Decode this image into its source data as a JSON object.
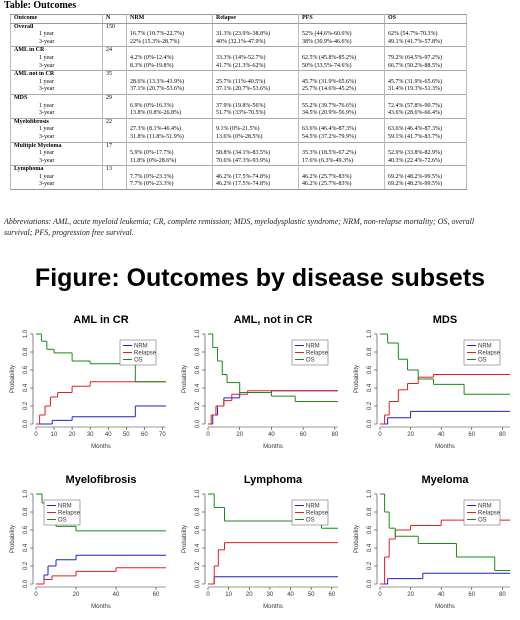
{
  "table": {
    "title": "Table: Outcomes",
    "headers": [
      "Outcome",
      "N",
      "NRM",
      "Relapse",
      "PFS",
      "OS"
    ],
    "groups": [
      {
        "name": "Overall",
        "n": 150,
        "rows": [
          {
            "label": "1 year",
            "cells": [
              "16.7% (10.7%-22.7%)",
              "31.3% (23.9%-38.8%)",
              "52% (44.6%-60.6%)",
              "62% (54.7%-70.3%)"
            ]
          },
          {
            "label": "3-year",
            "cells": [
              "22% (15.3%-28.7%)",
              "40% (32.1%-47.9%)",
              "38% (30.9%-46.6%)",
              "49.1% (41.7%-57.8%)"
            ]
          }
        ]
      },
      {
        "name": "AML in CR",
        "n": 24,
        "rows": [
          {
            "label": "1 year",
            "cells": [
              "4.2% (0%-12.4%)",
              "33.3% (14%-52.7%)",
              "62.5% (45.8%-85.2%)",
              "79.2% (64.5%-97.2%)"
            ]
          },
          {
            "label": "3-year",
            "cells": [
              "8.3% (0%-19.8%)",
              "41.7% (21.3%-62%)",
              "50% (33.5%-74.6%)",
              "66.7% (50.2%-88.5%)"
            ]
          }
        ]
      },
      {
        "name": "AML not in CR",
        "n": 35,
        "rows": [
          {
            "label": "1 year",
            "cells": [
              "28.6% (13.3%-43.9%)",
              "25.7% (11%-40.5%)",
              "45.7% (31.9%-65.6%)",
              "45.7% (31.9%-65.6%)"
            ]
          },
          {
            "label": "3-year",
            "cells": [
              "37.1% (20.7%-53.6%)",
              "37.1% (20.7%-53.6%)",
              "25.7% (14.6%-45.2%)",
              "31.4% (19.3%-51.3%)"
            ]
          }
        ]
      },
      {
        "name": "MDS",
        "n": 29,
        "rows": [
          {
            "label": "1 year",
            "cells": [
              "6.9% (0%-16.3%)",
              "37.9% (19.8%-56%)",
              "55.2% (39.7%-76.6%)",
              "72.4% (57.8%-90.7%)"
            ]
          },
          {
            "label": "3-year",
            "cells": [
              "13.8% (0.8%-26.8%)",
              "51.7% (33%-70.5%)",
              "34.5% (20.9%-56.9%)",
              "43.6% (28.6%-66.4%)"
            ]
          }
        ]
      },
      {
        "name": "Myelofibrosis",
        "n": 22,
        "rows": [
          {
            "label": "1 year",
            "cells": [
              "27.3% (8.1%-46.4%)",
              "9.1% (0%-21.5%)",
              "63.6% (46.4%-87.3%)",
              "63.6% (46.4%-87.3%)"
            ]
          },
          {
            "label": "3-year",
            "cells": [
              "31.8% (11.8%-51.9%)",
              "13.6% (0%-28.5%)",
              "54.5% (37.2%-79.9%)",
              "59.1% (41.7%-83.7%)"
            ]
          }
        ]
      },
      {
        "name": "Multiple Myeloma",
        "n": 17,
        "rows": [
          {
            "label": "1 year",
            "cells": [
              "5.9% (0%-17.7%)",
              "58.8% (34.1%-83.5%)",
              "35.3% (18.5%-67.2%)",
              "52.9% (33.8%-82.9%)"
            ]
          },
          {
            "label": "3-year",
            "cells": [
              "11.8% (0%-28.6%)",
              "70.6% (47.3%-93.9%)",
              "17.6% (6.3%-49.3%)",
              "40.3% (22.4%-72.6%)"
            ]
          }
        ]
      },
      {
        "name": "Lymphoma",
        "n": 13,
        "rows": [
          {
            "label": "1 year",
            "cells": [
              "7.7% (0%-23.3%)",
              "46.2% (17.5%-74.8%)",
              "46.2% (25.7%-83%)",
              "69.2% (48.2%-99.5%)"
            ]
          },
          {
            "label": "3-year",
            "cells": [
              "7.7% (0%-23.3%)",
              "46.2% (17.5%-74.8%)",
              "46.2% (25.7%-83%)",
              "69.2% (48.2%-99.5%)"
            ]
          }
        ]
      }
    ]
  },
  "abbreviations": "Abbreviations: AML, acute myeloid leukemia; CR, complete remission; MDS, myelodysplastic syndrome; NRM, non-relapse mortality; OS, overall survival; PFS, progression free survival.",
  "figure_title": "Figure: Outcomes by disease subsets",
  "chart_data": [
    {
      "type": "line",
      "step": "post",
      "title": "AML in CR",
      "xlabel": "Months",
      "ylabel": "Probability",
      "legend": "upper right",
      "xlim": [
        0,
        72
      ],
      "xticks": [
        0,
        10,
        20,
        30,
        40,
        50,
        60,
        70
      ],
      "ylim": [
        0,
        1
      ],
      "yticks": [
        {
          "value": 0,
          "label": "0.0"
        },
        0.2,
        0.4,
        0.6,
        0.8,
        {
          "value": 1,
          "label": "1.0"
        }
      ],
      "series": [
        {
          "name": "NRM",
          "color": "#1f1fd6",
          "x": [
            0,
            9,
            20,
            55
          ],
          "values": [
            0,
            0.04,
            0.08,
            0.2
          ]
        },
        {
          "name": "Relapse",
          "color": "#e02020",
          "x": [
            0,
            2,
            5,
            8,
            12,
            20,
            30
          ],
          "values": [
            0,
            0.1,
            0.2,
            0.3,
            0.35,
            0.42,
            0.47
          ]
        },
        {
          "name": "OS",
          "color": "#1a8a1a",
          "x": [
            0,
            3,
            6,
            10,
            20,
            30,
            55
          ],
          "values": [
            1,
            0.92,
            0.83,
            0.79,
            0.7,
            0.67,
            0.47
          ]
        }
      ]
    },
    {
      "type": "line",
      "step": "post",
      "title": "AML, not in CR",
      "xlabel": "Months",
      "ylabel": "Probability",
      "legend": "upper right",
      "xlim": [
        0,
        82
      ],
      "xticks": [
        0,
        20,
        40,
        60,
        80
      ],
      "ylim": [
        0,
        1
      ],
      "yticks": [
        {
          "value": 0,
          "label": "0.0"
        },
        0.2,
        0.4,
        0.6,
        0.8,
        {
          "value": 1,
          "label": "1.0"
        }
      ],
      "series": [
        {
          "name": "NRM",
          "color": "#1f1fd6",
          "x": [
            0,
            3,
            6,
            10,
            20,
            40
          ],
          "values": [
            0,
            0.1,
            0.2,
            0.29,
            0.35,
            0.37
          ]
        },
        {
          "name": "Relapse",
          "color": "#e02020",
          "x": [
            0,
            2,
            5,
            10,
            15,
            25
          ],
          "values": [
            0,
            0.1,
            0.2,
            0.26,
            0.33,
            0.37
          ]
        },
        {
          "name": "OS",
          "color": "#1a8a1a",
          "x": [
            0,
            3,
            6,
            9,
            12,
            20,
            40,
            55
          ],
          "values": [
            1,
            0.85,
            0.7,
            0.55,
            0.46,
            0.35,
            0.31,
            0.25
          ]
        }
      ]
    },
    {
      "type": "line",
      "step": "post",
      "title": "MDS",
      "xlabel": "Months",
      "ylabel": "Probability",
      "legend": "upper right",
      "xlim": [
        0,
        85
      ],
      "xticks": [
        0,
        20,
        40,
        60,
        80
      ],
      "ylim": [
        0,
        1
      ],
      "yticks": [
        {
          "value": 0,
          "label": "0.0"
        },
        0.2,
        0.4,
        0.6,
        0.8,
        {
          "value": 1,
          "label": "1.0"
        }
      ],
      "series": [
        {
          "name": "NRM",
          "color": "#1f1fd6",
          "x": [
            0,
            5,
            20
          ],
          "values": [
            0,
            0.07,
            0.14
          ]
        },
        {
          "name": "Relapse",
          "color": "#e02020",
          "x": [
            0,
            3,
            6,
            12,
            18,
            25,
            35
          ],
          "values": [
            0,
            0.1,
            0.25,
            0.38,
            0.45,
            0.52,
            0.55
          ]
        },
        {
          "name": "OS",
          "color": "#1a8a1a",
          "x": [
            0,
            5,
            12,
            18,
            25,
            35,
            55
          ],
          "values": [
            1,
            0.9,
            0.72,
            0.6,
            0.5,
            0.44,
            0.33
          ]
        }
      ]
    },
    {
      "type": "line",
      "step": "post",
      "title": "Myelofibrosis",
      "xlabel": "Months",
      "ylabel": "Probability",
      "legend": "upper left",
      "xlim": [
        0,
        65
      ],
      "xticks": [
        0,
        20,
        40,
        60
      ],
      "ylim": [
        0,
        1
      ],
      "yticks": [
        {
          "value": 0,
          "label": "0.0"
        },
        0.2,
        0.4,
        0.6,
        0.8,
        {
          "value": 1,
          "label": "1.0"
        }
      ],
      "series": [
        {
          "name": "NRM",
          "color": "#1f1fd6",
          "x": [
            0,
            4,
            6,
            10,
            20
          ],
          "values": [
            0,
            0.1,
            0.2,
            0.27,
            0.32
          ]
        },
        {
          "name": "Relapse",
          "color": "#e02020",
          "x": [
            0,
            4,
            8,
            20,
            40
          ],
          "values": [
            0,
            0.05,
            0.09,
            0.14,
            0.18
          ]
        },
        {
          "name": "OS",
          "color": "#1a8a1a",
          "x": [
            0,
            3,
            6,
            10,
            20
          ],
          "values": [
            1,
            0.9,
            0.75,
            0.64,
            0.59
          ]
        }
      ]
    },
    {
      "type": "line",
      "step": "post",
      "title": "Lymphoma",
      "xlabel": "Months",
      "ylabel": "Probability",
      "legend": "upper right",
      "xlim": [
        0,
        63
      ],
      "xticks": [
        0,
        10,
        20,
        30,
        40,
        50,
        60
      ],
      "ylim": [
        0,
        1
      ],
      "yticks": [
        {
          "value": 0,
          "label": "0.0"
        },
        0.2,
        0.4,
        0.6,
        0.8,
        {
          "value": 1,
          "label": "1.0"
        }
      ],
      "series": [
        {
          "name": "NRM",
          "color": "#1f1fd6",
          "x": [
            0,
            3
          ],
          "values": [
            0,
            0.08
          ]
        },
        {
          "name": "Relapse",
          "color": "#e02020",
          "x": [
            0,
            3,
            5,
            8
          ],
          "values": [
            0,
            0.2,
            0.38,
            0.46
          ]
        },
        {
          "name": "OS",
          "color": "#1a8a1a",
          "x": [
            0,
            3,
            8,
            55
          ],
          "values": [
            1,
            0.85,
            0.7,
            0.62
          ]
        }
      ]
    },
    {
      "type": "line",
      "step": "post",
      "title": "Myeloma",
      "xlabel": "Months",
      "ylabel": "Probability",
      "legend": "upper right",
      "xlim": [
        0,
        85
      ],
      "xticks": [
        0,
        20,
        40,
        60,
        80
      ],
      "ylim": [
        0,
        1
      ],
      "yticks": [
        {
          "value": 0,
          "label": "0.0"
        },
        0.2,
        0.4,
        0.6,
        0.8,
        {
          "value": 1,
          "label": "1.0"
        }
      ],
      "series": [
        {
          "name": "NRM",
          "color": "#1f1fd6",
          "x": [
            0,
            5,
            28
          ],
          "values": [
            0,
            0.06,
            0.12
          ]
        },
        {
          "name": "Relapse",
          "color": "#e02020",
          "x": [
            0,
            3,
            6,
            10,
            20,
            40
          ],
          "values": [
            0,
            0.3,
            0.5,
            0.6,
            0.65,
            0.71
          ]
        },
        {
          "name": "OS",
          "color": "#1a8a1a",
          "x": [
            0,
            3,
            6,
            10,
            25,
            50,
            75
          ],
          "values": [
            1,
            0.8,
            0.62,
            0.53,
            0.45,
            0.3,
            0.15
          ]
        }
      ]
    }
  ]
}
